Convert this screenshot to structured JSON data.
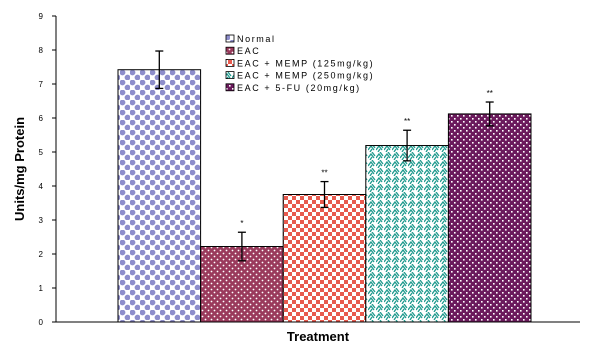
{
  "chart_data": {
    "type": "bar",
    "categories": [
      "Normal",
      "EAC",
      "EAC + MEMP (125mg/kg)",
      "EAC + MEMP (250mg/kg)",
      "EAC + 5-FU (20mg/kg)"
    ],
    "values": [
      7.42,
      2.22,
      3.75,
      5.19,
      6.12
    ],
    "errors": [
      0.55,
      0.42,
      0.38,
      0.45,
      0.35
    ],
    "significance": [
      "",
      "*",
      "**",
      "**",
      "**"
    ],
    "title": "",
    "xlabel": "Treatment",
    "ylabel": "Units/mg Protein",
    "ylim": [
      0,
      9
    ],
    "yticks": [
      "0",
      "1",
      "2",
      "3",
      "4",
      "5",
      "6",
      "7",
      "8",
      "9"
    ],
    "grid": false,
    "legend_position": "top-center",
    "legend": [
      "Normal",
      "EAC",
      "EAC + MEMP (125mg/kg)",
      "EAC + MEMP (250mg/kg)",
      "EAC + 5-FU (20mg/kg)"
    ],
    "colors": [
      "#8e8ecb",
      "#9a3a5c",
      "#e85a4e",
      "#1f9a8e",
      "#6b1a5c"
    ]
  }
}
